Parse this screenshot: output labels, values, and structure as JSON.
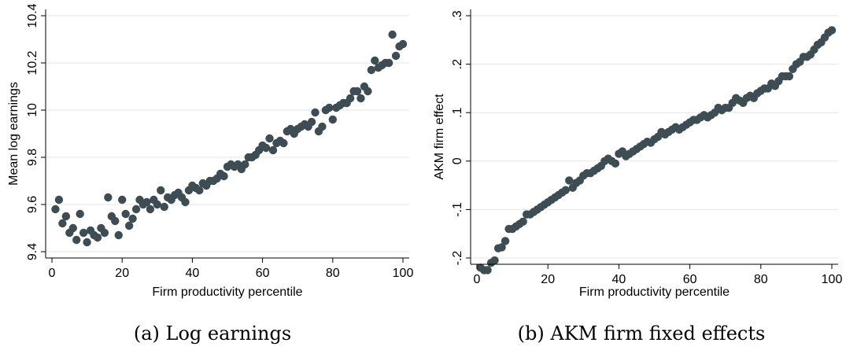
{
  "colors": {
    "marker": "#3e4c53",
    "grid": "#e6e6e6",
    "axis": "#000000",
    "background": "#ffffff"
  },
  "captions": {
    "a": "(a) Log earnings",
    "b": "(b) AKM firm fixed effects"
  },
  "chart_data": [
    {
      "type": "scatter",
      "xlabel": "Firm productivity percentile",
      "ylabel": "Mean log earnings",
      "xlim": [
        0,
        100
      ],
      "ylim": [
        9.4,
        10.4
      ],
      "xticks": [
        0,
        20,
        40,
        60,
        80,
        100
      ],
      "xtick_labels": [
        "0",
        "20",
        "40",
        "60",
        "80",
        "100"
      ],
      "yticks": [
        9.4,
        9.6,
        9.8,
        10,
        10.2,
        10.4
      ],
      "ytick_labels": [
        "9.4",
        "9.6",
        "9.8",
        "10",
        "10.2",
        "10.4"
      ],
      "grid": true,
      "x": [
        1,
        2,
        3,
        4,
        5,
        6,
        7,
        8,
        9,
        10,
        11,
        12,
        13,
        14,
        15,
        16,
        17,
        18,
        19,
        20,
        21,
        22,
        23,
        24,
        25,
        26,
        27,
        28,
        29,
        30,
        31,
        32,
        33,
        34,
        35,
        36,
        37,
        38,
        39,
        40,
        41,
        42,
        43,
        44,
        45,
        46,
        47,
        48,
        49,
        50,
        51,
        52,
        53,
        54,
        55,
        56,
        57,
        58,
        59,
        60,
        61,
        62,
        63,
        64,
        65,
        66,
        67,
        68,
        69,
        70,
        71,
        72,
        73,
        74,
        75,
        76,
        77,
        78,
        79,
        80,
        81,
        82,
        83,
        84,
        85,
        86,
        87,
        88,
        89,
        90,
        91,
        92,
        93,
        94,
        95,
        96,
        97,
        98,
        99,
        100
      ],
      "y": [
        9.58,
        9.62,
        9.52,
        9.55,
        9.48,
        9.5,
        9.45,
        9.56,
        9.48,
        9.44,
        9.49,
        9.47,
        9.46,
        9.5,
        9.48,
        9.63,
        9.55,
        9.53,
        9.47,
        9.62,
        9.56,
        9.51,
        9.54,
        9.58,
        9.62,
        9.6,
        9.61,
        9.58,
        9.62,
        9.6,
        9.66,
        9.59,
        9.63,
        9.62,
        9.64,
        9.65,
        9.63,
        9.61,
        9.66,
        9.68,
        9.67,
        9.66,
        9.69,
        9.68,
        9.7,
        9.7,
        9.71,
        9.73,
        9.72,
        9.76,
        9.77,
        9.76,
        9.77,
        9.75,
        9.77,
        9.8,
        9.8,
        9.81,
        9.83,
        9.85,
        9.84,
        9.88,
        9.83,
        9.86,
        9.87,
        9.86,
        9.91,
        9.92,
        9.9,
        9.92,
        9.93,
        9.94,
        9.93,
        9.95,
        9.99,
        9.91,
        9.93,
        10.0,
        10.01,
        9.96,
        10.01,
        10.02,
        10.03,
        10.03,
        10.05,
        10.08,
        10.08,
        10.05,
        10.1,
        10.08,
        10.17,
        10.21,
        10.18,
        10.19,
        10.2,
        10.2,
        10.32,
        10.23,
        10.27,
        10.28
      ]
    },
    {
      "type": "scatter",
      "xlabel": "Firm productivity percentile",
      "ylabel": "AKM firm effect",
      "xlim": [
        0,
        100
      ],
      "ylim": [
        -0.2,
        0.3
      ],
      "xticks": [
        0,
        20,
        40,
        60,
        80,
        100
      ],
      "xtick_labels": [
        "0",
        "20",
        "40",
        "60",
        "80",
        "100"
      ],
      "yticks": [
        -0.2,
        -0.1,
        0,
        0.1,
        0.2,
        0.3
      ],
      "ytick_labels": [
        "-.2",
        "-.1",
        "0",
        ".1",
        ".2",
        ".3"
      ],
      "grid": true,
      "x": [
        1,
        2,
        3,
        4,
        5,
        6,
        7,
        8,
        9,
        10,
        11,
        12,
        13,
        14,
        15,
        16,
        17,
        18,
        19,
        20,
        21,
        22,
        23,
        24,
        25,
        26,
        27,
        28,
        29,
        30,
        31,
        32,
        33,
        34,
        35,
        36,
        37,
        38,
        39,
        40,
        41,
        42,
        43,
        44,
        45,
        46,
        47,
        48,
        49,
        50,
        51,
        52,
        53,
        54,
        55,
        56,
        57,
        58,
        59,
        60,
        61,
        62,
        63,
        64,
        65,
        66,
        67,
        68,
        69,
        70,
        71,
        72,
        73,
        74,
        75,
        76,
        77,
        78,
        79,
        80,
        81,
        82,
        83,
        84,
        85,
        86,
        87,
        88,
        89,
        90,
        91,
        92,
        93,
        94,
        95,
        96,
        97,
        98,
        99,
        100
      ],
      "y": [
        -0.22,
        -0.225,
        -0.225,
        -0.21,
        -0.205,
        -0.18,
        -0.178,
        -0.165,
        -0.14,
        -0.14,
        -0.135,
        -0.13,
        -0.125,
        -0.11,
        -0.11,
        -0.105,
        -0.1,
        -0.095,
        -0.09,
        -0.085,
        -0.08,
        -0.075,
        -0.07,
        -0.065,
        -0.06,
        -0.04,
        -0.055,
        -0.045,
        -0.04,
        -0.03,
        -0.025,
        -0.025,
        -0.02,
        -0.015,
        -0.01,
        0.0,
        0.005,
        0.0,
        -0.005,
        0.015,
        0.02,
        0.01,
        0.015,
        0.02,
        0.025,
        0.03,
        0.035,
        0.04,
        0.038,
        0.045,
        0.05,
        0.06,
        0.055,
        0.06,
        0.065,
        0.07,
        0.065,
        0.07,
        0.075,
        0.08,
        0.085,
        0.085,
        0.09,
        0.095,
        0.09,
        0.095,
        0.1,
        0.11,
        0.105,
        0.11,
        0.11,
        0.12,
        0.13,
        0.125,
        0.12,
        0.13,
        0.135,
        0.13,
        0.14,
        0.145,
        0.15,
        0.15,
        0.16,
        0.155,
        0.165,
        0.175,
        0.175,
        0.175,
        0.19,
        0.2,
        0.205,
        0.215,
        0.215,
        0.22,
        0.23,
        0.24,
        0.245,
        0.255,
        0.265,
        0.27
      ]
    }
  ]
}
